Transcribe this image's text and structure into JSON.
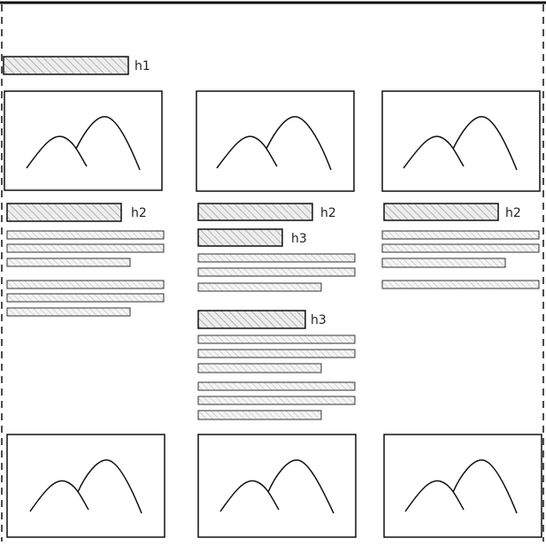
{
  "title_label": "h1",
  "columns": [
    {
      "heading": "h2",
      "subheadings": []
    },
    {
      "heading": "h2",
      "subheadings": [
        "h3",
        "h3"
      ]
    },
    {
      "heading": "h2",
      "subheadings": []
    }
  ],
  "colors": {
    "stroke": "#111111",
    "hatch": "#9a9a9a",
    "fill": "#ededed"
  }
}
